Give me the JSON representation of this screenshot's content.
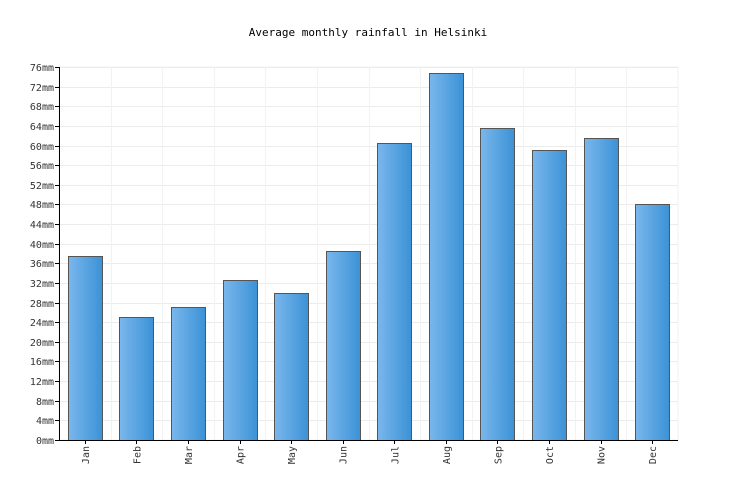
{
  "chart_data": {
    "type": "bar",
    "title": "Average monthly rainfall in Helsinki",
    "xlabel": "",
    "ylabel": "",
    "unit": "mm",
    "categories": [
      "Jan",
      "Feb",
      "Mar",
      "Apr",
      "May",
      "Jun",
      "Jul",
      "Aug",
      "Sep",
      "Oct",
      "Nov",
      "Dec"
    ],
    "values": [
      37.5,
      25,
      27.2,
      32.7,
      29.9,
      38.5,
      60.6,
      74.8,
      63.5,
      59.1,
      61.6,
      48
    ],
    "ylim": [
      0,
      76
    ],
    "yticks": [
      0,
      4,
      8,
      12,
      16,
      20,
      24,
      28,
      32,
      36,
      40,
      44,
      48,
      52,
      56,
      60,
      64,
      68,
      72,
      76
    ],
    "grid": true,
    "bar_color": "#4a9ee0",
    "bar_edge_color": "#555555"
  }
}
